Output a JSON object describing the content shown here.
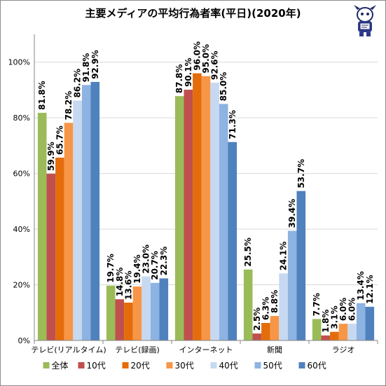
{
  "chart_data": {
    "type": "bar",
    "title": "主要メディアの平均行為者率(平日)(2020年)",
    "categories": [
      "テレビ(リアルタイム)",
      "テレビ(録画)",
      "インターネット",
      "新聞",
      "ラジオ"
    ],
    "series": [
      {
        "name": "全体",
        "color": "#9bbb59",
        "values": [
          81.8,
          19.7,
          87.8,
          25.5,
          7.7
        ]
      },
      {
        "name": "10代",
        "color": "#c0504d",
        "values": [
          59.9,
          14.8,
          90.1,
          2.5,
          1.8
        ]
      },
      {
        "name": "20代",
        "color": "#e46c0a",
        "values": [
          65.7,
          13.6,
          96.0,
          6.3,
          3.1
        ]
      },
      {
        "name": "30代",
        "color": "#f79646",
        "values": [
          78.2,
          19.4,
          95.0,
          8.8,
          6.0
        ]
      },
      {
        "name": "40代",
        "color": "#c6d9f1",
        "values": [
          86.2,
          23.0,
          92.6,
          24.1,
          6.0
        ]
      },
      {
        "name": "50代",
        "color": "#8db3e2",
        "values": [
          91.8,
          20.7,
          85.0,
          39.4,
          13.4
        ]
      },
      {
        "name": "60代",
        "color": "#4f81bd",
        "values": [
          92.9,
          22.3,
          71.3,
          53.7,
          12.1
        ]
      }
    ],
    "value_labels": [
      [
        "81.8%",
        "19.7%",
        "87.8%",
        "25.5%",
        "7.7%"
      ],
      [
        "59.9%",
        "14.8%",
        "90.1%",
        "2.5%",
        "1.8%"
      ],
      [
        "65.7%",
        "13.6%",
        "96.0%",
        "6.3%",
        "3.1%"
      ],
      [
        "78.2%",
        "19.4%",
        "95.0%",
        "8.8%",
        "6.0%"
      ],
      [
        "86.2%",
        "23.0%",
        "92.6%",
        "24.1%",
        "6.0%"
      ],
      [
        "91.8%",
        "20.7%",
        "85.0%",
        "39.4%",
        "13.4%"
      ],
      [
        "92.9%",
        "22.3%",
        "71.3%",
        "53.7%",
        "12.1%"
      ]
    ],
    "ylim": [
      0,
      110
    ],
    "yticks": [
      0,
      20,
      40,
      60,
      80,
      100
    ],
    "ytick_labels": [
      "0%",
      "20%",
      "40%",
      "60%",
      "80%",
      "100%"
    ],
    "grid": true,
    "legend_position": "bottom"
  }
}
